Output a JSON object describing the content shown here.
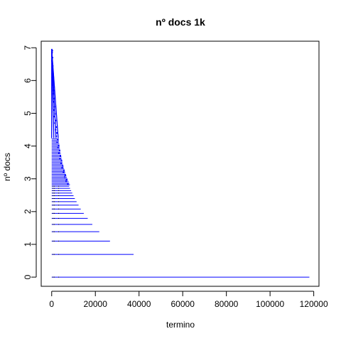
{
  "chart_data": {
    "type": "scatter",
    "title": "nº docs 1k",
    "xlabel": "termino",
    "ylabel": "nº docs",
    "xlim": [
      -4800,
      122400
    ],
    "ylim": [
      -0.28,
      7.2
    ],
    "xticks": [
      0,
      20000,
      40000,
      60000,
      80000,
      100000,
      120000
    ],
    "xtick_labels": [
      "0",
      "20000",
      "40000",
      "60000",
      "80000",
      "100000",
      "120000"
    ],
    "yticks": [
      0,
      1,
      2,
      3,
      4,
      5,
      6,
      7
    ],
    "ytick_labels": [
      "0",
      "1",
      "2",
      "3",
      "4",
      "5",
      "6",
      "7"
    ],
    "grid": false,
    "point_color": "#0000ff",
    "note_y_is_log_count": "y = ln(count) for count = 1..1000",
    "series": [
      {
        "level_max_x": [
          [
            0.0,
            118000
          ],
          [
            0.693,
            37500
          ],
          [
            1.099,
            26700
          ],
          [
            1.386,
            21800
          ],
          [
            1.609,
            18600
          ],
          [
            1.792,
            16500
          ],
          [
            1.946,
            14700
          ],
          [
            2.079,
            13300
          ],
          [
            2.197,
            12300
          ],
          [
            2.303,
            11400
          ],
          [
            2.398,
            10600
          ],
          [
            2.485,
            10000
          ],
          [
            2.565,
            9400
          ],
          [
            2.639,
            8900
          ],
          [
            2.708,
            8400
          ],
          [
            2.773,
            8000
          ]
        ],
        "scatter_points": [
          [
            300,
            6.91
          ],
          [
            200,
            6.85
          ],
          [
            400,
            6.7
          ],
          [
            100,
            6.6
          ],
          [
            500,
            6.45
          ],
          [
            350,
            6.3
          ],
          [
            600,
            6.2
          ],
          [
            250,
            6.1
          ],
          [
            700,
            5.95
          ],
          [
            500,
            5.85
          ],
          [
            900,
            5.7
          ],
          [
            650,
            5.6
          ],
          [
            1100,
            5.45
          ],
          [
            800,
            5.35
          ],
          [
            1300,
            5.2
          ],
          [
            1000,
            5.1
          ],
          [
            1500,
            4.98
          ],
          [
            1200,
            4.9
          ],
          [
            1800,
            4.78
          ],
          [
            1500,
            4.7
          ],
          [
            2100,
            4.58
          ],
          [
            1800,
            4.5
          ],
          [
            2400,
            4.4
          ],
          [
            2100,
            4.3
          ],
          [
            2800,
            4.2
          ],
          [
            2500,
            4.12
          ],
          [
            3200,
            4.02
          ],
          [
            2900,
            3.95
          ],
          [
            3600,
            3.86
          ],
          [
            3300,
            3.78
          ],
          [
            4000,
            3.7
          ],
          [
            3800,
            3.62
          ],
          [
            4500,
            3.55
          ],
          [
            4300,
            3.48
          ],
          [
            5000,
            3.4
          ],
          [
            4800,
            3.33
          ],
          [
            5600,
            3.26
          ],
          [
            5400,
            3.19
          ],
          [
            6200,
            3.12
          ],
          [
            6000,
            3.05
          ],
          [
            6800,
            2.98
          ],
          [
            6600,
            2.92
          ],
          [
            7400,
            2.85
          ]
        ]
      }
    ]
  }
}
